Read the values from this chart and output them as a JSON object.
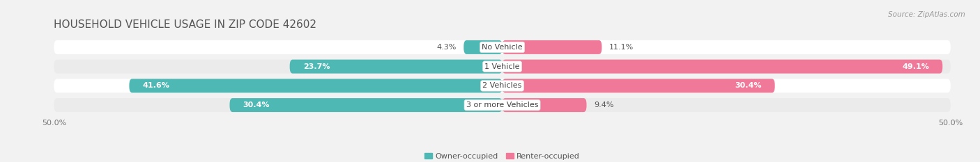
{
  "title": "HOUSEHOLD VEHICLE USAGE IN ZIP CODE 42602",
  "source": "Source: ZipAtlas.com",
  "categories": [
    "No Vehicle",
    "1 Vehicle",
    "2 Vehicles",
    "3 or more Vehicles"
  ],
  "owner_values": [
    4.3,
    23.7,
    41.6,
    30.4
  ],
  "renter_values": [
    11.1,
    49.1,
    30.4,
    9.4
  ],
  "owner_color": "#4db8b4",
  "renter_color": "#f07898",
  "owner_color_light": "#c8ecea",
  "renter_color_light": "#fcd0dc",
  "owner_label": "Owner-occupied",
  "renter_label": "Renter-occupied",
  "axis_limit": 50.0,
  "bg_color": "#f2f2f2",
  "row_colors": [
    "#ffffff",
    "#ebebeb",
    "#ffffff",
    "#ebebeb"
  ],
  "title_color": "#555555",
  "source_color": "#999999",
  "label_color": "#555555",
  "title_fontsize": 11,
  "source_fontsize": 7.5,
  "tick_fontsize": 8,
  "value_fontsize": 8,
  "cat_fontsize": 8,
  "bar_height": 0.72
}
